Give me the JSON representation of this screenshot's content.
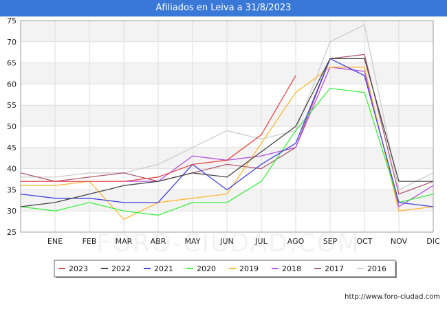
{
  "title": "Afiliados en Leiva a 31/8/2023",
  "footer_url": "http://www.foro-ciudad.com",
  "watermark": "FORO-CIUDAD.COM",
  "chart_data": {
    "type": "line",
    "title": "Afiliados en Leiva a 31/8/2023",
    "categories": [
      "",
      "ENE",
      "FEB",
      "MAR",
      "ABR",
      "MAY",
      "JUN",
      "JUL",
      "AGO",
      "SEP",
      "OCT",
      "NOV",
      "DIC"
    ],
    "ylim": [
      25,
      75
    ],
    "yticks": [
      25,
      30,
      35,
      40,
      45,
      50,
      55,
      60,
      65,
      70,
      75
    ],
    "grid": true,
    "legend_position": "bottom",
    "series": [
      {
        "name": "2016",
        "color": "#cccccc",
        "values": [
          38,
          38,
          39,
          39,
          41,
          45,
          49,
          47,
          49,
          70,
          74,
          35,
          39
        ]
      },
      {
        "name": "2017",
        "color": "#b05a6e",
        "values": [
          39,
          37,
          38,
          39,
          37,
          39,
          41,
          40,
          45,
          66,
          67,
          34,
          37
        ]
      },
      {
        "name": "2018",
        "color": "#b44fe0",
        "values": [
          37,
          37,
          37,
          37,
          37,
          43,
          42,
          43,
          45,
          64,
          63,
          31,
          36
        ]
      },
      {
        "name": "2019",
        "color": "#ffb732",
        "values": [
          36,
          36,
          37,
          28,
          32,
          33,
          34,
          46,
          58,
          64,
          64,
          30,
          31
        ]
      },
      {
        "name": "2020",
        "color": "#3cee3c",
        "values": [
          31,
          30,
          32,
          30,
          29,
          32,
          32,
          37,
          49,
          59,
          58,
          32,
          34
        ]
      },
      {
        "name": "2021",
        "color": "#4040dd",
        "values": [
          34,
          33,
          33,
          32,
          32,
          41,
          35,
          41,
          46,
          66,
          62,
          32,
          31
        ]
      },
      {
        "name": "2022",
        "color": "#444444",
        "values": [
          31,
          32,
          34,
          36,
          37,
          39,
          38,
          44,
          50,
          66,
          66,
          37,
          37
        ]
      },
      {
        "name": "2023",
        "color": "#e84545",
        "values": [
          37,
          37,
          37,
          37,
          38,
          41,
          42,
          48,
          62,
          null,
          null,
          null,
          null
        ]
      }
    ],
    "legend_order": [
      "2023",
      "2022",
      "2021",
      "2020",
      "2019",
      "2018",
      "2017",
      "2016"
    ]
  }
}
